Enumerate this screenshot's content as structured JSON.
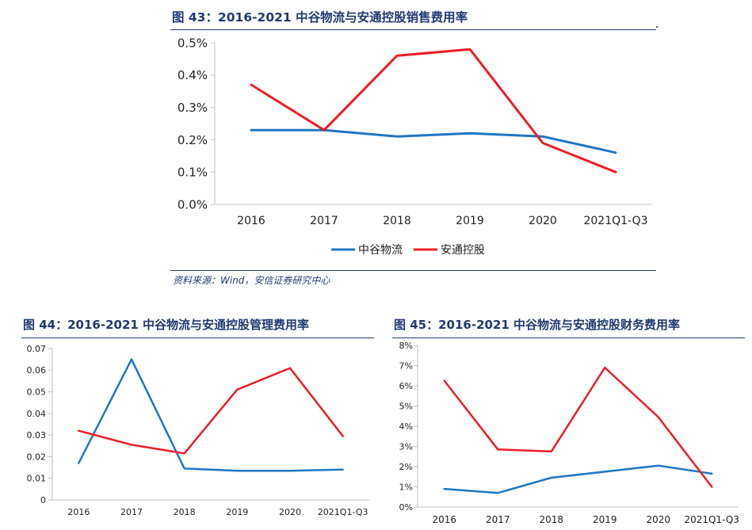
{
  "fig1": {
    "title": "图 43：2016-2021 中谷物流与安通控股销售费用率",
    "source": "资料来源：Wind，安信证券研究中心"
  },
  "fig2": {
    "title": "图 44：2016-2021 中谷物流与安通控股管理费用率"
  },
  "fig3": {
    "title": "图 45：2016-2021 中谷物流与安通控股财务费用率"
  },
  "colors": {
    "series1": "#1f77c4",
    "series2": "#ee1c25",
    "axis": "#bfbfbf",
    "title": "#1f3a73"
  },
  "chart_data": [
    {
      "type": "line",
      "categories": [
        "2016",
        "2017",
        "2018",
        "2019",
        "2020",
        "2021Q1-Q3"
      ],
      "ylim": [
        0,
        0.5
      ],
      "yticks": [
        "0.0%",
        "0.1%",
        "0.2%",
        "0.3%",
        "0.4%",
        "0.5%"
      ],
      "series": [
        {
          "name": "中谷物流",
          "values": [
            0.23,
            0.23,
            0.21,
            0.22,
            0.21,
            0.16
          ]
        },
        {
          "name": "安通控股",
          "values": [
            0.37,
            0.23,
            0.46,
            0.48,
            0.19,
            0.1
          ]
        }
      ],
      "legend": "bottom",
      "grid": false
    },
    {
      "type": "line",
      "categories": [
        "2016",
        "2017",
        "2018",
        "2019",
        "2020",
        "2021Q1-Q3"
      ],
      "ylim": [
        0,
        0.07
      ],
      "yticks": [
        "0",
        "0.01",
        "0.02",
        "0.03",
        "0.04",
        "0.05",
        "0.06",
        "0.07"
      ],
      "series": [
        {
          "name": "",
          "values": [
            0.017,
            0.065,
            0.0145,
            0.0135,
            0.0135,
            0.014
          ]
        },
        {
          "name": "",
          "values": [
            0.032,
            0.0255,
            0.0215,
            0.051,
            0.061,
            0.0295
          ]
        }
      ],
      "grid": false
    },
    {
      "type": "line",
      "categories": [
        "2016",
        "2017",
        "2018",
        "2019",
        "2020",
        "2021Q1-Q3"
      ],
      "ylim": [
        0,
        8
      ],
      "yticks": [
        "0%",
        "1%",
        "2%",
        "3%",
        "4%",
        "5%",
        "6%",
        "7%",
        "8%"
      ],
      "series": [
        {
          "name": "",
          "values": [
            0.9,
            0.7,
            1.45,
            1.75,
            2.05,
            1.65
          ]
        },
        {
          "name": "",
          "values": [
            6.25,
            2.85,
            2.75,
            6.9,
            4.45,
            1.0
          ]
        }
      ],
      "grid": false
    }
  ]
}
